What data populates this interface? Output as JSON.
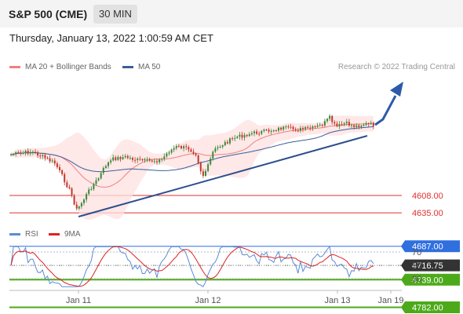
{
  "header": {
    "instrument": "S&P 500 (CME)",
    "timeframe": "30 MIN"
  },
  "datetime": "Thursday, January 13, 2022 1:00:59 AM CET",
  "legend": {
    "ma20": {
      "label": "MA 20 + Bollinger Bands",
      "color": "#f08080"
    },
    "ma50": {
      "label": "MA 50",
      "color": "#3a5f9a"
    },
    "credit": "Research © 2022 Trading Central"
  },
  "rsi_legend": {
    "rsi": {
      "label": "RSI",
      "color": "#5b8bd6"
    },
    "ma9": {
      "label": "9MA",
      "color": "#dd2222"
    }
  },
  "chart_data": {
    "type": "line",
    "price_levels": [
      {
        "value": 4782.0,
        "label": "4782.00",
        "kind": "resistance",
        "color": "#4caa1a"
      },
      {
        "value": 4739.0,
        "label": "4739.00",
        "kind": "resistance",
        "color": "#4caa1a"
      },
      {
        "value": 4716.75,
        "label": "4716.75",
        "kind": "current",
        "color": "#333333"
      },
      {
        "value": 4687.0,
        "label": "4687.00",
        "kind": "pivot",
        "color": "#2f6fdf"
      },
      {
        "value": 4635.0,
        "label": "4635.00",
        "kind": "support",
        "color": "#e03030"
      },
      {
        "value": 4608.0,
        "label": "4608.00",
        "kind": "support",
        "color": "#e03030"
      }
    ],
    "x_ticks": [
      "Jan 11",
      "Jan 12",
      "Jan 13",
      "Jan 19"
    ],
    "rsi_ticks": [
      70,
      50,
      30
    ],
    "rsi_ylim": [
      10,
      80
    ],
    "series": [
      {
        "name": "MA 20 + Bollinger Bands"
      },
      {
        "name": "MA 50"
      },
      {
        "name": "RSI"
      },
      {
        "name": "9MA"
      }
    ]
  },
  "colors": {
    "up_candle": "#3a8a3a",
    "down_candle": "#c0392b",
    "band_fill": "#fde0e0",
    "trendline": "#2d4e8e"
  }
}
